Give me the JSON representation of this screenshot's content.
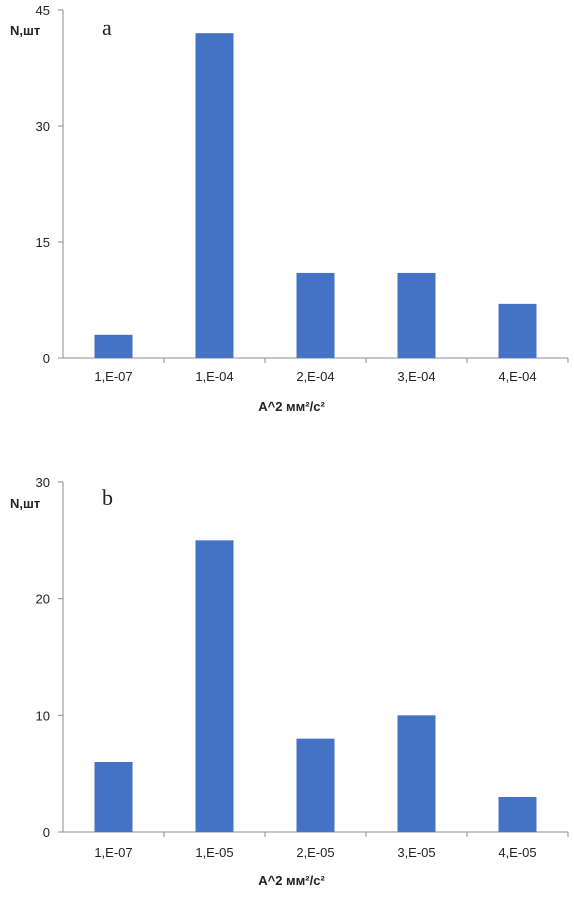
{
  "chart_data": [
    {
      "type": "bar",
      "panel_label": "a",
      "ylabel": "N,шт",
      "xlabel": "A^2 мм²/с²",
      "categories": [
        "1,E-07",
        "1,E-04",
        "2,E-04",
        "3,E-04",
        "4,E-04"
      ],
      "values": [
        3,
        42,
        11,
        11,
        7
      ],
      "ylim": [
        0,
        45
      ],
      "yticks": [
        "0",
        "15",
        "30",
        "45"
      ],
      "bar_color": "#4472C4",
      "grid": false,
      "legend": "none"
    },
    {
      "type": "bar",
      "panel_label": "b",
      "ylabel": "N,шт",
      "xlabel": "A^2 мм²/с²",
      "categories": [
        "1,E-07",
        "1,E-05",
        "2,E-05",
        "3,E-05",
        "4,E-05"
      ],
      "values": [
        6,
        25,
        8,
        10,
        3
      ],
      "ylim": [
        0,
        30
      ],
      "yticks": [
        "0",
        "10",
        "20",
        "30"
      ],
      "bar_color": "#4472C4",
      "grid": false,
      "legend": "none"
    }
  ]
}
